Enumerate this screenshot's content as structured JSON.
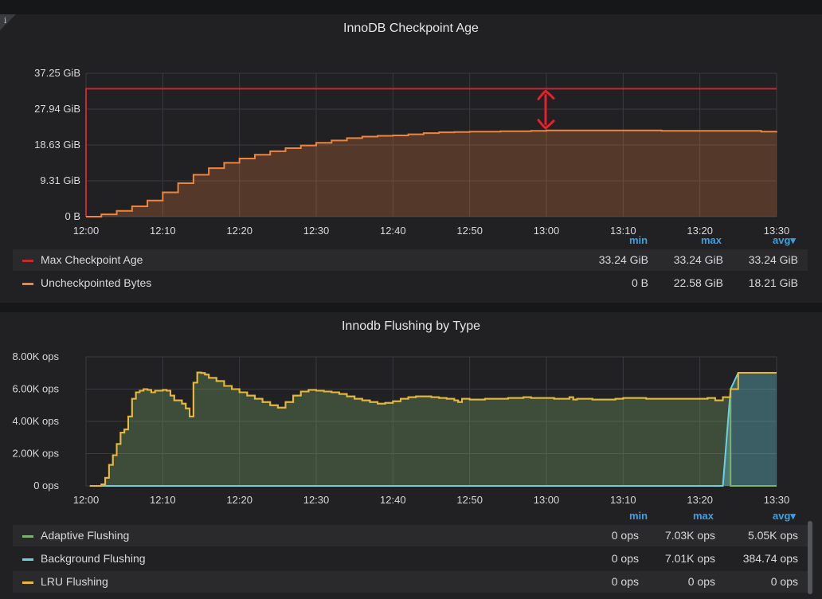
{
  "panel1": {
    "title": "InnoDB Checkpoint Age",
    "legend_headers": {
      "min": "min",
      "max": "max",
      "avg": "avg▾"
    },
    "legend": [
      {
        "name": "Max Checkpoint Age",
        "color": "#c4292e",
        "min": "33.24 GiB",
        "max": "33.24 GiB",
        "avg": "33.24 GiB"
      },
      {
        "name": "Uncheckpointed Bytes",
        "color": "#ef843c",
        "min": "0 B",
        "max": "22.58 GiB",
        "avg": "18.21 GiB"
      }
    ]
  },
  "panel2": {
    "title": "Innodb Flushing by Type",
    "legend_headers": {
      "min": "min",
      "max": "max",
      "avg": "avg▾"
    },
    "legend": [
      {
        "name": "Adaptive Flushing",
        "color": "#7eb26d",
        "min": "0 ops",
        "max": "7.03K ops",
        "avg": "5.05K ops"
      },
      {
        "name": "Background Flushing",
        "color": "#6ed0e0",
        "min": "0 ops",
        "max": "7.01K ops",
        "avg": "384.74 ops"
      },
      {
        "name": "LRU Flushing",
        "color": "#eab839",
        "min": "0 ops",
        "max": "0 ops",
        "avg": "0 ops"
      }
    ]
  },
  "chart_data": [
    {
      "type": "line",
      "title": "InnoDB Checkpoint Age",
      "x_ticks": [
        "12:00",
        "12:10",
        "12:20",
        "12:30",
        "12:40",
        "12:50",
        "13:00",
        "13:10",
        "13:20",
        "13:30"
      ],
      "y_ticks": [
        "0 B",
        "9.31 GiB",
        "18.63 GiB",
        "27.94 GiB",
        "37.25 GiB"
      ],
      "ylim": [
        0,
        37.25
      ],
      "xlim_minutes": [
        0,
        90
      ],
      "y_unit": "GiB",
      "annotation": "red double-headed arrow between Max Checkpoint Age and Uncheckpointed Bytes at 13:00",
      "series": [
        {
          "name": "Max Checkpoint Age",
          "color": "#c4292e",
          "fill": false,
          "points": [
            [
              0,
              0
            ],
            [
              0,
              33.24
            ],
            [
              90,
              33.24
            ]
          ]
        },
        {
          "name": "Uncheckpointed Bytes",
          "color": "#ef843c",
          "fill": true,
          "points": [
            [
              0,
              0
            ],
            [
              2,
              0.6
            ],
            [
              4,
              1.5
            ],
            [
              6,
              2.7
            ],
            [
              8,
              4.2
            ],
            [
              10,
              6.3
            ],
            [
              12,
              8.7
            ],
            [
              14,
              10.9
            ],
            [
              16,
              12.6
            ],
            [
              18,
              14.0
            ],
            [
              20,
              15.1
            ],
            [
              22,
              16.1
            ],
            [
              24,
              17.0
            ],
            [
              26,
              17.8
            ],
            [
              28,
              18.5
            ],
            [
              30,
              19.2
            ],
            [
              32,
              19.8
            ],
            [
              34,
              20.4
            ],
            [
              36,
              20.8
            ],
            [
              38,
              21.0
            ],
            [
              40,
              21.1
            ],
            [
              42,
              21.4
            ],
            [
              44,
              21.7
            ],
            [
              46,
              21.9
            ],
            [
              48,
              22.0
            ],
            [
              50,
              22.1
            ],
            [
              52,
              22.1
            ],
            [
              54,
              22.2
            ],
            [
              56,
              22.2
            ],
            [
              58,
              22.3
            ],
            [
              60,
              22.4
            ],
            [
              62,
              22.4
            ],
            [
              65,
              22.4
            ],
            [
              70,
              22.4
            ],
            [
              75,
              22.3
            ],
            [
              80,
              22.3
            ],
            [
              85,
              22.3
            ],
            [
              88,
              22.1
            ],
            [
              90,
              22.2
            ]
          ]
        }
      ]
    },
    {
      "type": "area",
      "title": "Innodb Flushing by Type",
      "x_ticks": [
        "12:00",
        "12:10",
        "12:20",
        "12:30",
        "12:40",
        "12:50",
        "13:00",
        "13:10",
        "13:20",
        "13:30"
      ],
      "y_ticks": [
        "0 ops",
        "2.00K ops",
        "4.00K ops",
        "6.00K ops",
        "8.00K ops"
      ],
      "ylim": [
        0,
        8000
      ],
      "xlim_minutes": [
        0,
        90
      ],
      "y_unit": "ops",
      "series": [
        {
          "name": "Adaptive Flushing",
          "color": "#7eb26d",
          "points": [
            [
              0.5,
              0
            ],
            [
              1,
              0
            ],
            [
              2,
              100
            ],
            [
              2.5,
              500
            ],
            [
              3,
              1300
            ],
            [
              3.5,
              1900
            ],
            [
              4,
              2600
            ],
            [
              4.5,
              3300
            ],
            [
              5,
              3500
            ],
            [
              5.5,
              4300
            ],
            [
              6,
              5400
            ],
            [
              6.5,
              5800
            ],
            [
              7,
              5900
            ],
            [
              7.5,
              6000
            ],
            [
              8,
              5950
            ],
            [
              8.5,
              5800
            ],
            [
              9,
              5900
            ],
            [
              9.5,
              5900
            ],
            [
              10,
              5950
            ],
            [
              10.5,
              5900
            ],
            [
              11,
              5600
            ],
            [
              11.5,
              5300
            ],
            [
              12,
              5300
            ],
            [
              12.5,
              5100
            ],
            [
              13,
              4800
            ],
            [
              13.5,
              4300
            ],
            [
              14,
              6400
            ],
            [
              14.5,
              7030
            ],
            [
              15,
              7000
            ],
            [
              15.5,
              6900
            ],
            [
              16,
              6700
            ],
            [
              17,
              6500
            ],
            [
              18,
              6200
            ],
            [
              19,
              6000
            ],
            [
              20,
              5800
            ],
            [
              21,
              5600
            ],
            [
              22,
              5400
            ],
            [
              23,
              5200
            ],
            [
              24,
              5000
            ],
            [
              25,
              4850
            ],
            [
              26,
              5200
            ],
            [
              27,
              5600
            ],
            [
              28,
              5850
            ],
            [
              29,
              5950
            ],
            [
              30,
              5900
            ],
            [
              31,
              5850
            ],
            [
              32,
              5800
            ],
            [
              33,
              5700
            ],
            [
              34,
              5550
            ],
            [
              35,
              5400
            ],
            [
              36,
              5300
            ],
            [
              37,
              5200
            ],
            [
              38,
              5100
            ],
            [
              39,
              5150
            ],
            [
              40,
              5250
            ],
            [
              41,
              5400
            ],
            [
              42,
              5500
            ],
            [
              43,
              5550
            ],
            [
              44,
              5550
            ],
            [
              45,
              5500
            ],
            [
              46,
              5450
            ],
            [
              47,
              5400
            ],
            [
              48,
              5300
            ],
            [
              48.5,
              5200
            ],
            [
              49,
              5400
            ],
            [
              50,
              5350
            ],
            [
              51,
              5350
            ],
            [
              52,
              5400
            ],
            [
              53,
              5400
            ],
            [
              54,
              5400
            ],
            [
              55,
              5450
            ],
            [
              56,
              5450
            ],
            [
              57,
              5500
            ],
            [
              58,
              5450
            ],
            [
              59,
              5450
            ],
            [
              60,
              5450
            ],
            [
              61,
              5400
            ],
            [
              62,
              5400
            ],
            [
              63,
              5500
            ],
            [
              63.5,
              5350
            ],
            [
              64,
              5400
            ],
            [
              65,
              5400
            ],
            [
              66,
              5350
            ],
            [
              67,
              5350
            ],
            [
              68,
              5350
            ],
            [
              69,
              5400
            ],
            [
              70,
              5450
            ],
            [
              71,
              5450
            ],
            [
              72,
              5450
            ],
            [
              73,
              5400
            ],
            [
              74,
              5400
            ],
            [
              75,
              5400
            ],
            [
              76,
              5400
            ],
            [
              77,
              5400
            ],
            [
              78,
              5400
            ],
            [
              79,
              5400
            ],
            [
              80,
              5400
            ],
            [
              81,
              5450
            ],
            [
              82,
              5300
            ],
            [
              83,
              5500
            ],
            [
              84,
              0
            ],
            [
              90,
              0
            ]
          ]
        },
        {
          "name": "Background Flushing",
          "color": "#6ed0e0",
          "points": [
            [
              0.5,
              0
            ],
            [
              83,
              0
            ],
            [
              84,
              6000
            ],
            [
              85,
              7010
            ],
            [
              90,
              7010
            ]
          ]
        },
        {
          "name": "LRU Flushing",
          "color": "#eab839",
          "points": [
            [
              0.5,
              0
            ],
            [
              90,
              0
            ]
          ]
        }
      ]
    }
  ]
}
